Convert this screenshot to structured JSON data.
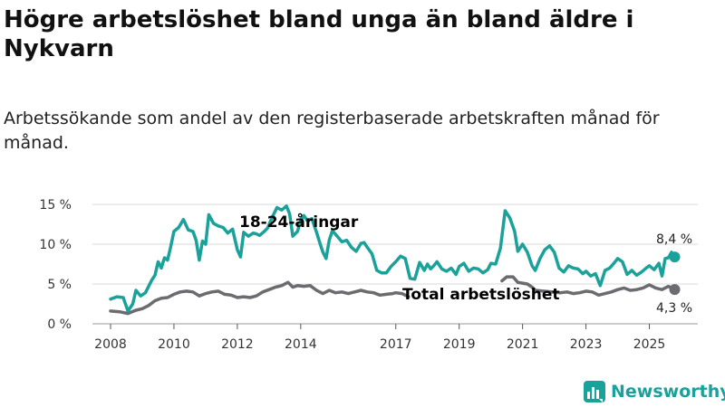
{
  "title": "Högre arbetslöshet bland unga än bland äldre i Nykvarn",
  "subtitle": "Arbetssökande som andel av den registerbaserade arbetskraften månad för månad.",
  "brand": {
    "name": "Newsworthy",
    "icon": "newsworthy-logo-icon"
  },
  "colors": {
    "youth": "#1aa29a",
    "total": "#6b6b70",
    "grid": "#d9d9d9"
  },
  "chart_data": {
    "type": "line",
    "title": "Högre arbetslöshet bland unga än bland äldre i Nykvarn",
    "xlabel": "",
    "ylabel": "",
    "xlim": [
      2008.0,
      2025.9
    ],
    "ylim": [
      0,
      15
    ],
    "y_ticks": [
      0,
      5,
      10,
      15
    ],
    "y_tick_labels": [
      "0 %",
      "5 %",
      "10 %",
      "15 %"
    ],
    "x_ticks": [
      2008,
      2010,
      2012,
      2014,
      2017,
      2019,
      2021,
      2023,
      2025
    ],
    "x_tick_labels": [
      "2008",
      "2010",
      "2012",
      "2014",
      "2017",
      "2019",
      "2021",
      "2023",
      "2025"
    ],
    "grid": true,
    "series": [
      {
        "name": "18-24-åringar",
        "color": "#1aa29a",
        "end_label": "8,4 %",
        "points": [
          [
            2008.0,
            3.1
          ],
          [
            2008.2,
            3.4
          ],
          [
            2008.4,
            3.3
          ],
          [
            2008.55,
            1.6
          ],
          [
            2008.7,
            2.5
          ],
          [
            2008.8,
            4.2
          ],
          [
            2008.95,
            3.5
          ],
          [
            2009.1,
            3.9
          ],
          [
            2009.2,
            4.7
          ],
          [
            2009.3,
            5.5
          ],
          [
            2009.4,
            6.1
          ],
          [
            2009.5,
            7.8
          ],
          [
            2009.6,
            7.0
          ],
          [
            2009.7,
            8.3
          ],
          [
            2009.8,
            8.0
          ],
          [
            2009.9,
            9.7
          ],
          [
            2010.0,
            11.6
          ],
          [
            2010.15,
            12.1
          ],
          [
            2010.3,
            13.1
          ],
          [
            2010.45,
            11.8
          ],
          [
            2010.6,
            11.6
          ],
          [
            2010.7,
            10.5
          ],
          [
            2010.8,
            8.0
          ],
          [
            2010.9,
            10.4
          ],
          [
            2011.0,
            10.0
          ],
          [
            2011.1,
            13.7
          ],
          [
            2011.25,
            12.6
          ],
          [
            2011.4,
            12.3
          ],
          [
            2011.55,
            12.1
          ],
          [
            2011.7,
            11.4
          ],
          [
            2011.85,
            11.9
          ],
          [
            2012.0,
            9.3
          ],
          [
            2012.1,
            8.4
          ],
          [
            2012.2,
            11.5
          ],
          [
            2012.35,
            11.0
          ],
          [
            2012.5,
            11.4
          ],
          [
            2012.6,
            11.3
          ],
          [
            2012.7,
            11.1
          ],
          [
            2012.85,
            11.6
          ],
          [
            2012.95,
            12.0
          ],
          [
            2013.1,
            13.4
          ],
          [
            2013.25,
            14.6
          ],
          [
            2013.4,
            14.3
          ],
          [
            2013.55,
            14.8
          ],
          [
            2013.65,
            13.8
          ],
          [
            2013.75,
            11.0
          ],
          [
            2013.9,
            11.6
          ],
          [
            2014.0,
            13.0
          ],
          [
            2014.1,
            13.6
          ],
          [
            2014.2,
            13.0
          ],
          [
            2014.35,
            13.2
          ],
          [
            2014.5,
            11.5
          ],
          [
            2014.6,
            10.2
          ],
          [
            2014.7,
            9.0
          ],
          [
            2014.8,
            8.2
          ],
          [
            2014.9,
            10.5
          ],
          [
            2015.0,
            11.7
          ],
          [
            2015.15,
            11.0
          ],
          [
            2015.3,
            10.3
          ],
          [
            2015.45,
            10.5
          ],
          [
            2015.6,
            9.6
          ],
          [
            2015.75,
            9.1
          ],
          [
            2015.9,
            10.1
          ],
          [
            2016.0,
            10.2
          ],
          [
            2016.1,
            9.6
          ],
          [
            2016.25,
            8.8
          ],
          [
            2016.4,
            6.7
          ],
          [
            2016.55,
            6.4
          ],
          [
            2016.7,
            6.4
          ],
          [
            2016.85,
            7.2
          ],
          [
            2017.0,
            7.8
          ],
          [
            2017.15,
            8.5
          ],
          [
            2017.3,
            8.2
          ],
          [
            2017.45,
            5.7
          ],
          [
            2017.6,
            5.6
          ],
          [
            2017.75,
            7.7
          ],
          [
            2017.9,
            6.7
          ],
          [
            2018.0,
            7.5
          ],
          [
            2018.1,
            6.9
          ],
          [
            2018.2,
            7.3
          ],
          [
            2018.3,
            7.8
          ],
          [
            2018.45,
            6.9
          ],
          [
            2018.6,
            6.6
          ],
          [
            2018.75,
            7.0
          ],
          [
            2018.9,
            6.2
          ],
          [
            2019.0,
            7.2
          ],
          [
            2019.15,
            7.6
          ],
          [
            2019.3,
            6.6
          ],
          [
            2019.45,
            7.0
          ],
          [
            2019.6,
            6.9
          ],
          [
            2019.75,
            6.4
          ],
          [
            2019.9,
            6.8
          ],
          [
            2020.0,
            7.6
          ],
          [
            2020.15,
            7.5
          ],
          [
            2020.3,
            9.5
          ],
          [
            2020.45,
            14.2
          ],
          [
            2020.6,
            13.3
          ],
          [
            2020.75,
            11.6
          ],
          [
            2020.85,
            9.1
          ],
          [
            2021.0,
            10.0
          ],
          [
            2021.15,
            9.0
          ],
          [
            2021.3,
            7.3
          ],
          [
            2021.4,
            6.7
          ],
          [
            2021.55,
            8.2
          ],
          [
            2021.7,
            9.3
          ],
          [
            2021.85,
            9.8
          ],
          [
            2022.0,
            9.0
          ],
          [
            2022.15,
            7.0
          ],
          [
            2022.3,
            6.5
          ],
          [
            2022.45,
            7.3
          ],
          [
            2022.6,
            7.0
          ],
          [
            2022.75,
            6.9
          ],
          [
            2022.9,
            6.3
          ],
          [
            2023.0,
            6.6
          ],
          [
            2023.15,
            6.0
          ],
          [
            2023.3,
            6.3
          ],
          [
            2023.45,
            4.8
          ],
          [
            2023.6,
            6.7
          ],
          [
            2023.75,
            7.0
          ],
          [
            2023.9,
            7.7
          ],
          [
            2024.0,
            8.2
          ],
          [
            2024.15,
            7.8
          ],
          [
            2024.3,
            6.2
          ],
          [
            2024.45,
            6.7
          ],
          [
            2024.6,
            6.1
          ],
          [
            2024.75,
            6.5
          ],
          [
            2024.9,
            7.0
          ],
          [
            2025.0,
            7.3
          ],
          [
            2025.15,
            6.8
          ],
          [
            2025.3,
            7.6
          ],
          [
            2025.4,
            6.0
          ],
          [
            2025.5,
            8.2
          ],
          [
            2025.6,
            8.3
          ],
          [
            2025.7,
            9.0
          ],
          [
            2025.8,
            8.4
          ]
        ]
      },
      {
        "name": "Total arbetslöshet",
        "color": "#6b6b70",
        "end_label": "4,3 %",
        "points": [
          [
            2008.0,
            1.6
          ],
          [
            2008.3,
            1.5
          ],
          [
            2008.55,
            1.3
          ],
          [
            2008.8,
            1.7
          ],
          [
            2009.0,
            1.9
          ],
          [
            2009.2,
            2.3
          ],
          [
            2009.4,
            2.9
          ],
          [
            2009.6,
            3.2
          ],
          [
            2009.8,
            3.3
          ],
          [
            2010.0,
            3.7
          ],
          [
            2010.2,
            4.0
          ],
          [
            2010.4,
            4.1
          ],
          [
            2010.6,
            4.0
          ],
          [
            2010.8,
            3.5
          ],
          [
            2011.0,
            3.8
          ],
          [
            2011.2,
            4.0
          ],
          [
            2011.4,
            4.1
          ],
          [
            2011.6,
            3.7
          ],
          [
            2011.8,
            3.6
          ],
          [
            2012.0,
            3.3
          ],
          [
            2012.2,
            3.4
          ],
          [
            2012.4,
            3.3
          ],
          [
            2012.6,
            3.5
          ],
          [
            2012.8,
            4.0
          ],
          [
            2013.0,
            4.3
          ],
          [
            2013.2,
            4.6
          ],
          [
            2013.4,
            4.8
          ],
          [
            2013.6,
            5.2
          ],
          [
            2013.75,
            4.6
          ],
          [
            2013.9,
            4.8
          ],
          [
            2014.1,
            4.7
          ],
          [
            2014.3,
            4.8
          ],
          [
            2014.5,
            4.2
          ],
          [
            2014.7,
            3.8
          ],
          [
            2014.9,
            4.2
          ],
          [
            2015.1,
            3.9
          ],
          [
            2015.3,
            4.0
          ],
          [
            2015.5,
            3.8
          ],
          [
            2015.7,
            4.0
          ],
          [
            2015.9,
            4.2
          ],
          [
            2016.1,
            4.0
          ],
          [
            2016.3,
            3.9
          ],
          [
            2016.5,
            3.6
          ],
          [
            2016.7,
            3.7
          ],
          [
            2016.9,
            3.8
          ],
          [
            2017.0,
            3.9
          ],
          [
            2017.2,
            3.8
          ],
          [
            2017.4,
            3.4
          ]
        ]
      },
      {
        "name": "Total arbetslöshet (2020–)",
        "color": "#6b6b70",
        "points": [
          [
            2020.35,
            5.4
          ],
          [
            2020.5,
            5.9
          ],
          [
            2020.7,
            5.9
          ],
          [
            2020.85,
            5.2
          ],
          [
            2021.0,
            5.1
          ],
          [
            2021.15,
            5.0
          ],
          [
            2021.3,
            4.6
          ],
          [
            2021.4,
            4.2
          ],
          [
            2022.2,
            3.9
          ],
          [
            2022.4,
            4.0
          ],
          [
            2022.6,
            3.8
          ],
          [
            2022.8,
            3.9
          ],
          [
            2023.0,
            4.1
          ],
          [
            2023.2,
            4.0
          ],
          [
            2023.4,
            3.6
          ],
          [
            2023.6,
            3.8
          ],
          [
            2023.8,
            4.0
          ],
          [
            2024.0,
            4.3
          ],
          [
            2024.2,
            4.5
          ],
          [
            2024.4,
            4.2
          ],
          [
            2024.6,
            4.3
          ],
          [
            2024.8,
            4.5
          ],
          [
            2025.0,
            4.9
          ],
          [
            2025.2,
            4.5
          ],
          [
            2025.4,
            4.3
          ],
          [
            2025.6,
            4.7
          ],
          [
            2025.8,
            4.3
          ]
        ]
      }
    ],
    "annotations": [
      "18-24-åringar",
      "Total arbetslöshet"
    ]
  }
}
